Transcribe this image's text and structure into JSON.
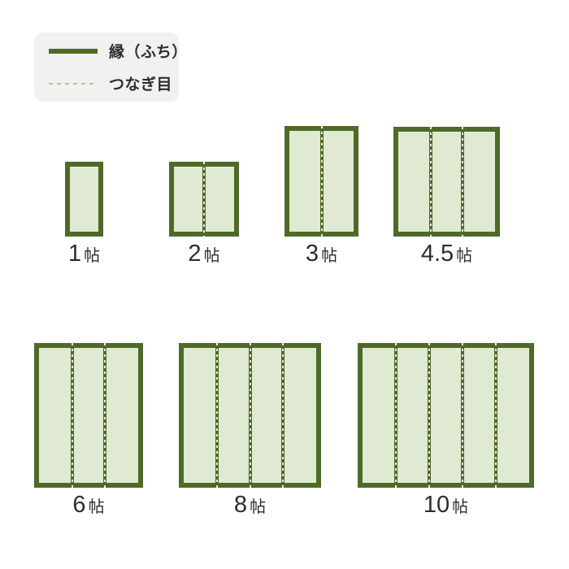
{
  "colors": {
    "background": "#ffffff",
    "border_green": "#4d6a27",
    "mat_fill": "#e0e9d2",
    "seam_dash": "#e7eede",
    "legend_background": "#f1f1ef",
    "legend_dash": "#b8bfad",
    "text": "#2d2d2d"
  },
  "legend": {
    "items": [
      {
        "name": "edge-border",
        "label": "縁（ふち）",
        "swatch": "solid-line"
      },
      {
        "name": "seam-joint",
        "label": "つなぎ目",
        "swatch": "dashed-line"
      }
    ]
  },
  "mats": [
    {
      "label": "1帖",
      "size_value": "1",
      "unit": "帖",
      "panels": 1,
      "seams": 0
    },
    {
      "label": "2帖",
      "size_value": "2",
      "unit": "帖",
      "panels": 2,
      "seams": 1
    },
    {
      "label": "3帖",
      "size_value": "3",
      "unit": "帖",
      "panels": 2,
      "seams": 1
    },
    {
      "label": "4.5帖",
      "size_value": "4.5",
      "unit": "帖",
      "panels": 3,
      "seams": 2
    },
    {
      "label": "6帖",
      "size_value": "6",
      "unit": "帖",
      "panels": 3,
      "seams": 2
    },
    {
      "label": "8帖",
      "size_value": "8",
      "unit": "帖",
      "panels": 4,
      "seams": 3
    },
    {
      "label": "10帖",
      "size_value": "10",
      "unit": "帖",
      "panels": 5,
      "seams": 4
    }
  ]
}
